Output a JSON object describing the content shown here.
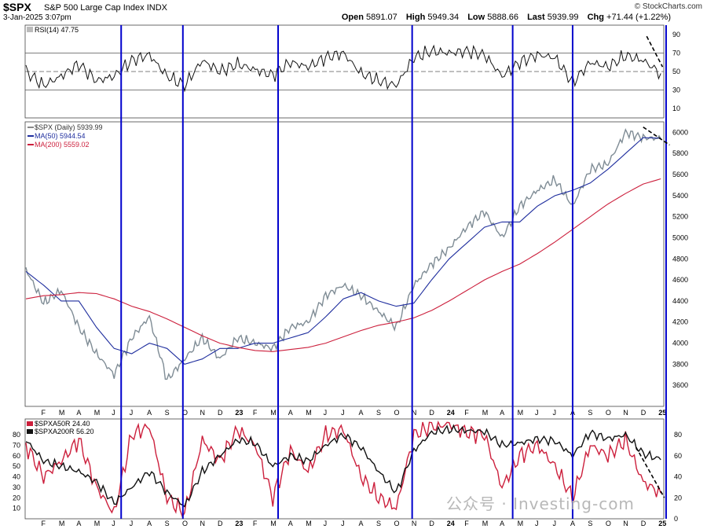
{
  "header": {
    "symbol": "$SPX",
    "name": "S&P 500 Large Cap Index",
    "exchange": "INDX",
    "date": "3-Jan-2025 3:07pm",
    "brand": "© StockCharts.com",
    "open_label": "Open",
    "open": "5891.07",
    "high_label": "High",
    "high": "5949.34",
    "low_label": "Low",
    "low": "5888.66",
    "last_label": "Last",
    "last": "5939.99",
    "chg_label": "Chg",
    "chg": "+71.44 (+1.22%)"
  },
  "watermark": "公众号 · Investing-com",
  "colors": {
    "price": "#7f8c95",
    "ma50": "#1f2e9e",
    "ma200": "#cc1f3c",
    "rsi": "#111111",
    "vline": "#0000cc",
    "trend": "#000000"
  },
  "chart_data": [
    {
      "type": "line",
      "panel": "RSI",
      "legend": [
        "RSI(14) 47.75"
      ],
      "yticks": [
        10,
        30,
        50,
        70,
        90
      ],
      "ylim": [
        0,
        100
      ],
      "hlines": [
        30,
        50,
        70
      ],
      "series": [
        {
          "name": "RSI(14) 47.75",
          "x": [
            "2022-01",
            "2022-02",
            "2022-03",
            "2022-04",
            "2022-05",
            "2022-06",
            "2022-07",
            "2022-08",
            "2022-09",
            "2022-10",
            "2022-11",
            "2022-12",
            "2023-01",
            "2023-02",
            "2023-03",
            "2023-04",
            "2023-05",
            "2023-06",
            "2023-07",
            "2023-08",
            "2023-09",
            "2023-10",
            "2023-11",
            "2023-12",
            "2024-01",
            "2024-02",
            "2024-03",
            "2024-04",
            "2024-05",
            "2024-06",
            "2024-07",
            "2024-08",
            "2024-09",
            "2024-10",
            "2024-11",
            "2024-12",
            "2025-01"
          ],
          "values": [
            50,
            35,
            45,
            58,
            40,
            45,
            62,
            68,
            45,
            35,
            62,
            50,
            58,
            52,
            46,
            60,
            55,
            65,
            70,
            48,
            40,
            35,
            65,
            72,
            70,
            72,
            68,
            45,
            60,
            68,
            65,
            38,
            60,
            55,
            67,
            62,
            48
          ]
        }
      ]
    },
    {
      "type": "line",
      "panel": "Price",
      "legend": [
        "$SPX (Daily) 5939.99",
        "MA(50) 5944.54",
        "MA(200) 5559.02"
      ],
      "yticks": [
        3600,
        3800,
        4000,
        4200,
        4400,
        4600,
        4800,
        5000,
        5200,
        5400,
        5600,
        5800,
        6000
      ],
      "ylim": [
        3400,
        6100
      ],
      "xlabels": [
        "F",
        "M",
        "A",
        "M",
        "J",
        "J",
        "A",
        "S",
        "O",
        "N",
        "D",
        "23",
        "F",
        "M",
        "A",
        "M",
        "J",
        "J",
        "A",
        "S",
        "O",
        "N",
        "D",
        "24",
        "F",
        "M",
        "A",
        "M",
        "J",
        "J",
        "A",
        "S",
        "O",
        "N",
        "D",
        "25"
      ],
      "series": [
        {
          "name": "$SPX (Daily) 5939.99",
          "x": [
            "2022-01",
            "2022-02",
            "2022-03",
            "2022-04",
            "2022-05",
            "2022-06",
            "2022-07",
            "2022-08",
            "2022-09",
            "2022-10",
            "2022-11",
            "2022-12",
            "2023-01",
            "2023-02",
            "2023-03",
            "2023-04",
            "2023-05",
            "2023-06",
            "2023-07",
            "2023-08",
            "2023-09",
            "2023-10",
            "2023-11",
            "2023-12",
            "2024-01",
            "2024-02",
            "2024-03",
            "2024-04",
            "2024-05",
            "2024-06",
            "2024-07",
            "2024-08",
            "2024-09",
            "2024-10",
            "2024-11",
            "2024-12",
            "2025-01"
          ],
          "values": [
            4700,
            4380,
            4500,
            4150,
            3900,
            3700,
            4050,
            4250,
            3650,
            3850,
            4050,
            3850,
            4050,
            4000,
            3950,
            4150,
            4200,
            4450,
            4550,
            4450,
            4300,
            4150,
            4550,
            4750,
            4900,
            5100,
            5250,
            5000,
            5300,
            5450,
            5550,
            5300,
            5650,
            5700,
            6000,
            5950,
            5940
          ]
        },
        {
          "name": "MA(50) 5944.54",
          "x": [
            "2022-01",
            "2022-02",
            "2022-03",
            "2022-04",
            "2022-05",
            "2022-06",
            "2022-07",
            "2022-08",
            "2022-09",
            "2022-10",
            "2022-11",
            "2022-12",
            "2023-01",
            "2023-02",
            "2023-03",
            "2023-04",
            "2023-05",
            "2023-06",
            "2023-07",
            "2023-08",
            "2023-09",
            "2023-10",
            "2023-11",
            "2023-12",
            "2024-01",
            "2024-02",
            "2024-03",
            "2024-04",
            "2024-05",
            "2024-06",
            "2024-07",
            "2024-08",
            "2024-09",
            "2024-10",
            "2024-11",
            "2024-12",
            "2025-01"
          ],
          "values": [
            4680,
            4550,
            4400,
            4400,
            4150,
            3950,
            3900,
            4000,
            3950,
            3800,
            3850,
            3950,
            3950,
            4000,
            4000,
            4050,
            4100,
            4250,
            4420,
            4480,
            4400,
            4350,
            4380,
            4600,
            4800,
            4950,
            5100,
            5150,
            5150,
            5300,
            5400,
            5450,
            5520,
            5650,
            5800,
            5950,
            5945
          ]
        },
        {
          "name": "MA(200) 5559.02",
          "x": [
            "2022-01",
            "2022-02",
            "2022-03",
            "2022-04",
            "2022-05",
            "2022-06",
            "2022-07",
            "2022-08",
            "2022-09",
            "2022-10",
            "2022-11",
            "2022-12",
            "2023-01",
            "2023-02",
            "2023-03",
            "2023-04",
            "2023-05",
            "2023-06",
            "2023-07",
            "2023-08",
            "2023-09",
            "2023-10",
            "2023-11",
            "2023-12",
            "2024-01",
            "2024-02",
            "2024-03",
            "2024-04",
            "2024-05",
            "2024-06",
            "2024-07",
            "2024-08",
            "2024-09",
            "2024-10",
            "2024-11",
            "2024-12",
            "2025-01"
          ],
          "values": [
            4420,
            4450,
            4460,
            4480,
            4470,
            4420,
            4350,
            4300,
            4230,
            4150,
            4070,
            4000,
            3960,
            3930,
            3920,
            3940,
            3960,
            4000,
            4060,
            4120,
            4170,
            4200,
            4240,
            4310,
            4400,
            4500,
            4600,
            4680,
            4750,
            4850,
            4960,
            5080,
            5200,
            5320,
            5420,
            5510,
            5559
          ]
        }
      ]
    },
    {
      "type": "line",
      "panel": "Breadth",
      "legend": [
        "$SPXA50R 24.40",
        "$SPXA200R 56.20"
      ],
      "yticks_left": [
        10,
        20,
        30,
        40,
        50,
        60,
        70,
        80
      ],
      "yticks_right": [
        0,
        20,
        40,
        60,
        80
      ],
      "ylim": [
        0,
        95
      ],
      "xlabels": [
        "F",
        "M",
        "A",
        "M",
        "J",
        "J",
        "A",
        "S",
        "O",
        "N",
        "D",
        "23",
        "F",
        "M",
        "A",
        "M",
        "J",
        "J",
        "A",
        "S",
        "O",
        "N",
        "D",
        "24",
        "F",
        "M",
        "A",
        "M",
        "J",
        "J",
        "A",
        "S",
        "O",
        "N",
        "D",
        "25"
      ],
      "series": [
        {
          "name": "$SPXA50R 24.40",
          "x": [
            "2022-01",
            "2022-02",
            "2022-03",
            "2022-04",
            "2022-05",
            "2022-06",
            "2022-07",
            "2022-08",
            "2022-09",
            "2022-10",
            "2022-11",
            "2022-12",
            "2023-01",
            "2023-02",
            "2023-03",
            "2023-04",
            "2023-05",
            "2023-06",
            "2023-07",
            "2023-08",
            "2023-09",
            "2023-10",
            "2023-11",
            "2023-12",
            "2024-01",
            "2024-02",
            "2024-03",
            "2024-04",
            "2024-05",
            "2024-06",
            "2024-07",
            "2024-08",
            "2024-09",
            "2024-10",
            "2024-11",
            "2024-12",
            "2025-01"
          ],
          "values": [
            70,
            40,
            55,
            75,
            30,
            5,
            80,
            88,
            20,
            5,
            75,
            55,
            85,
            70,
            20,
            65,
            45,
            80,
            85,
            40,
            20,
            10,
            80,
            88,
            90,
            82,
            80,
            30,
            60,
            70,
            50,
            20,
            70,
            60,
            75,
            35,
            24.4
          ]
        },
        {
          "name": "$SPXA200R 56.20",
          "x": [
            "2022-01",
            "2022-02",
            "2022-03",
            "2022-04",
            "2022-05",
            "2022-06",
            "2022-07",
            "2022-08",
            "2022-09",
            "2022-10",
            "2022-11",
            "2022-12",
            "2023-01",
            "2023-02",
            "2023-03",
            "2023-04",
            "2023-05",
            "2023-06",
            "2023-07",
            "2023-08",
            "2023-09",
            "2023-10",
            "2023-11",
            "2023-12",
            "2024-01",
            "2024-02",
            "2024-03",
            "2024-04",
            "2024-05",
            "2024-06",
            "2024-07",
            "2024-08",
            "2024-09",
            "2024-10",
            "2024-11",
            "2024-12",
            "2025-01"
          ],
          "values": [
            75,
            55,
            50,
            45,
            35,
            15,
            30,
            45,
            25,
            12,
            45,
            60,
            75,
            72,
            50,
            60,
            55,
            70,
            80,
            68,
            45,
            25,
            65,
            82,
            85,
            84,
            83,
            70,
            72,
            76,
            74,
            60,
            82,
            76,
            80,
            62,
            56.2
          ]
        }
      ]
    }
  ]
}
